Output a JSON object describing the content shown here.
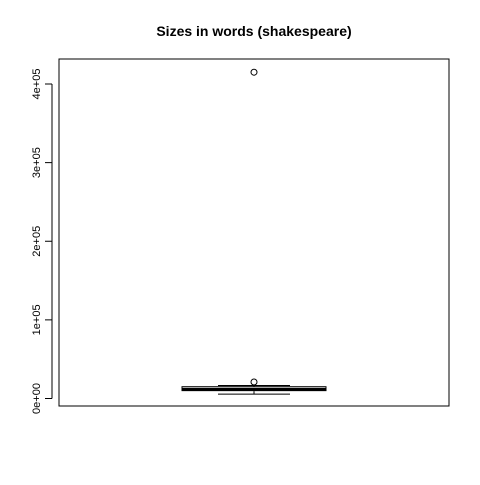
{
  "chart_data": {
    "type": "box",
    "title": "Sizes in words (shakespeare)",
    "xlabel": "",
    "ylabel": "",
    "ylim": [
      0,
      420000
    ],
    "y_ticks": [
      {
        "value": 0,
        "label": "0e+00"
      },
      {
        "value": 100000,
        "label": "1e+05"
      },
      {
        "value": 200000,
        "label": "2e+05"
      },
      {
        "value": 300000,
        "label": "3e+05"
      },
      {
        "value": 400000,
        "label": "4e+05"
      }
    ],
    "series": [
      {
        "whisker_low": 5500,
        "q1": 10000,
        "median": 11500,
        "q3": 15000,
        "whisker_high": 16500,
        "outliers": [
          21000,
          415000
        ]
      }
    ],
    "grid": false,
    "colors": {
      "box_fill": "#d3d3d3",
      "median": "#000000",
      "axis": "#000000"
    }
  }
}
